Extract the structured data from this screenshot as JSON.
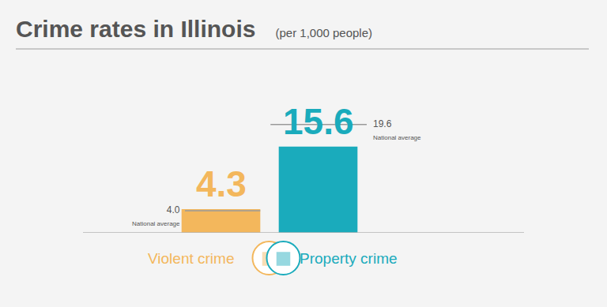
{
  "chart_data": {
    "type": "bar",
    "title": "Crime rates in Illinois",
    "subtitle": "(per 1,000 people)",
    "categories": [
      "Violent crime",
      "Property crime"
    ],
    "values": [
      4.3,
      15.6
    ],
    "colors": [
      "#f3b75c",
      "#1aabbc"
    ],
    "data_labels": true,
    "tick_labels": "x",
    "ylim": [
      0,
      21
    ],
    "national_average": {
      "name": "National average",
      "values": [
        4.0,
        19.6
      ],
      "value_labels": [
        "4.0",
        "19.6"
      ]
    }
  }
}
